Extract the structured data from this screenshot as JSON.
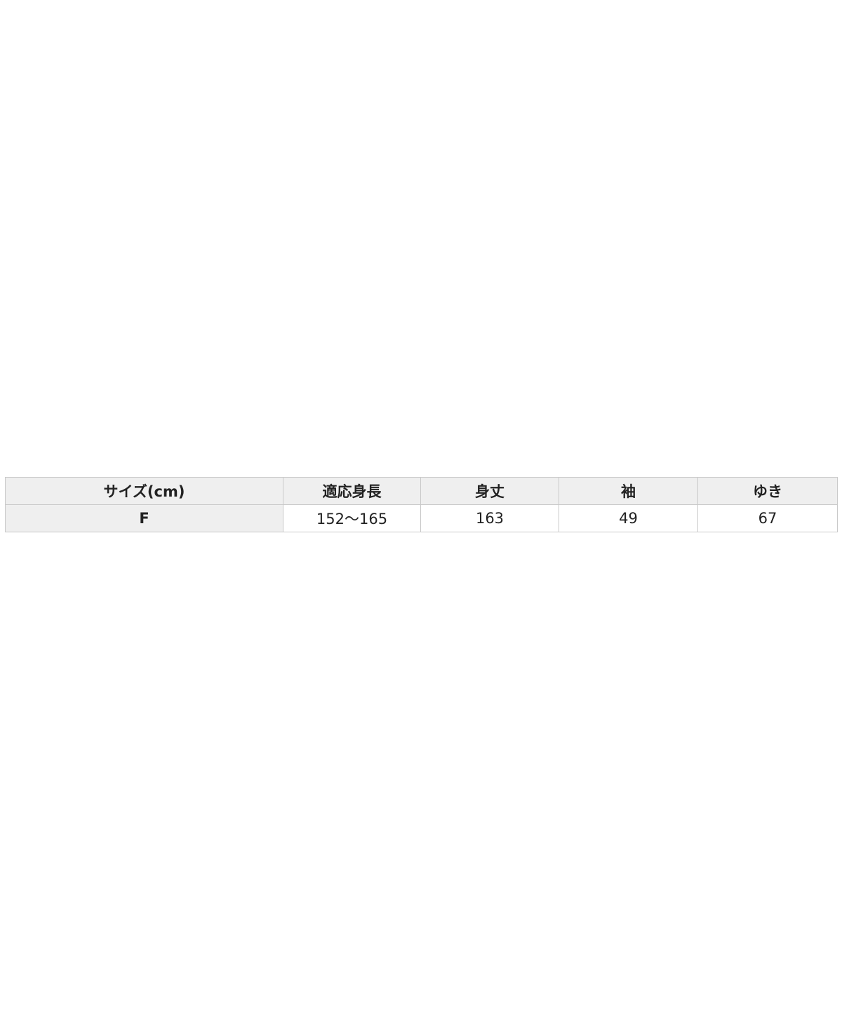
{
  "size_table": {
    "headers": [
      "サイズ(cm)",
      "適応身長",
      "身丈",
      "袖",
      "ゆき"
    ],
    "rows": [
      [
        "F",
        "152〜165",
        "163",
        "49",
        "67"
      ]
    ]
  }
}
